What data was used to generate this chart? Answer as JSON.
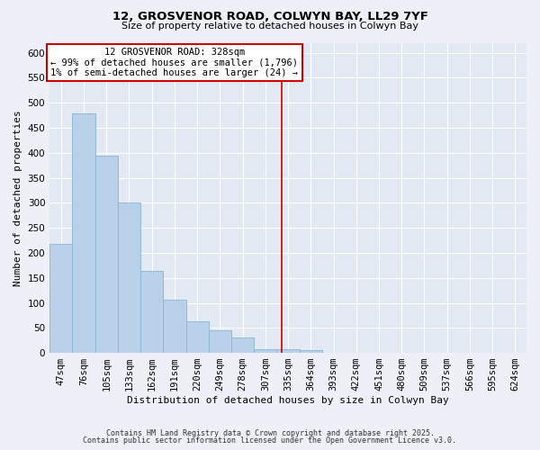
{
  "title": "12, GROSVENOR ROAD, COLWYN BAY, LL29 7YF",
  "subtitle": "Size of property relative to detached houses in Colwyn Bay",
  "xlabel": "Distribution of detached houses by size in Colwyn Bay",
  "ylabel": "Number of detached properties",
  "bar_labels": [
    "47sqm",
    "76sqm",
    "105sqm",
    "133sqm",
    "162sqm",
    "191sqm",
    "220sqm",
    "249sqm",
    "278sqm",
    "307sqm",
    "335sqm",
    "364sqm",
    "393sqm",
    "422sqm",
    "451sqm",
    "480sqm",
    "509sqm",
    "537sqm",
    "566sqm",
    "595sqm",
    "624sqm"
  ],
  "bar_values": [
    218,
    478,
    394,
    301,
    164,
    107,
    63,
    46,
    30,
    8,
    7,
    5,
    1,
    0,
    0,
    0,
    0,
    0,
    0,
    0,
    0
  ],
  "bar_color": "#b8d0e8",
  "bar_edge_color": "#8ab4d4",
  "vline_x": 9.72,
  "vline_color": "#cc0000",
  "annotation_title": "12 GROSVENOR ROAD: 328sqm",
  "annotation_line1": "← 99% of detached houses are smaller (1,796)",
  "annotation_line2": "1% of semi-detached houses are larger (24) →",
  "annotation_box_facecolor": "#ffffff",
  "annotation_box_edgecolor": "#cc0000",
  "ylim": [
    0,
    620
  ],
  "yticks": [
    0,
    50,
    100,
    150,
    200,
    250,
    300,
    350,
    400,
    450,
    500,
    550,
    600
  ],
  "bg_color": "#edf1f7",
  "plot_bg_color": "#e2e9f2",
  "grid_color": "#ffffff",
  "title_fontsize": 9.5,
  "subtitle_fontsize": 8,
  "axis_label_fontsize": 8,
  "tick_fontsize": 7.5,
  "footer_line1": "Contains HM Land Registry data © Crown copyright and database right 2025.",
  "footer_line2": "Contains public sector information licensed under the Open Government Licence v3.0."
}
